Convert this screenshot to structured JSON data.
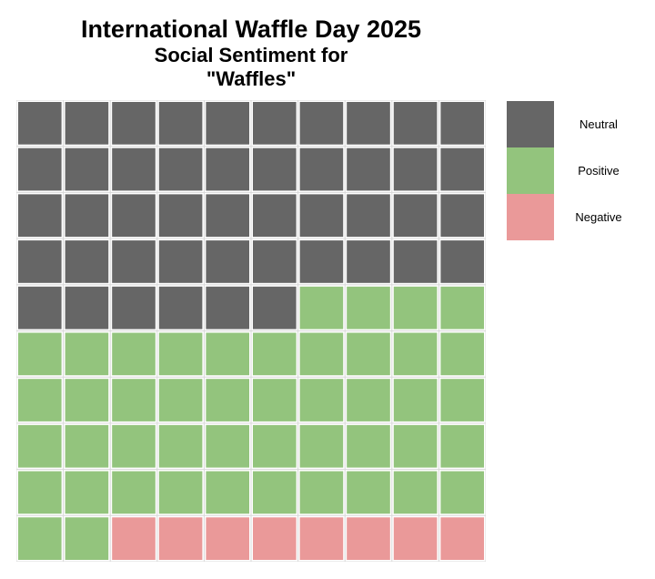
{
  "chart_data": {
    "type": "waffle",
    "title": "International Waffle Day 2025",
    "subtitle": "Social Sentiment for\n\"Waffles\"",
    "rows": 10,
    "columns": 10,
    "fill_order": "row-major from top-left",
    "categories": [
      {
        "name": "Neutral",
        "value": 46,
        "color": "#666666"
      },
      {
        "name": "Positive",
        "value": 46,
        "color": "#93c47d"
      },
      {
        "name": "Negative",
        "value": 8,
        "color": "#ea9999"
      }
    ],
    "cell_order": [
      "Neutral",
      "Positive",
      "Negative"
    ],
    "legend_position": "right"
  }
}
